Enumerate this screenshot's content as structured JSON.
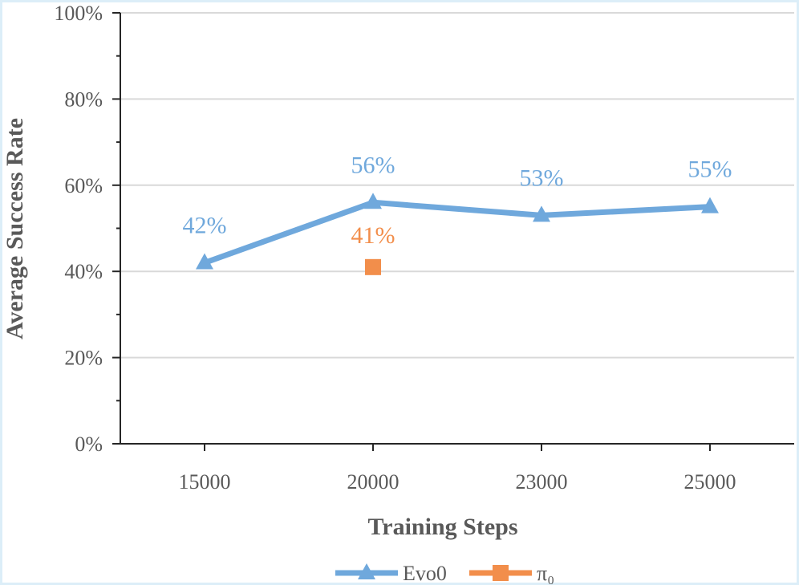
{
  "chart_data": {
    "type": "line",
    "categories": [
      "15000",
      "20000",
      "23000",
      "25000"
    ],
    "xlabel": "Training Steps",
    "ylabel": "Average Success Rate",
    "ylim": [
      0,
      100
    ],
    "y_ticks": [
      "0%",
      "20%",
      "40%",
      "60%",
      "80%",
      "100%"
    ],
    "grid": true,
    "legend_position": "bottom",
    "series": [
      {
        "name": "Evo0",
        "values": [
          42,
          56,
          53,
          55
        ],
        "labels": [
          "42%",
          "56%",
          "53%",
          "55%"
        ],
        "color": "#6fa8dc",
        "marker": "triangle"
      },
      {
        "name": "π₀",
        "values": [
          null,
          41,
          null,
          null
        ],
        "labels": [
          null,
          "41%",
          null,
          null
        ],
        "color": "#f28e4b",
        "marker": "square"
      }
    ]
  }
}
